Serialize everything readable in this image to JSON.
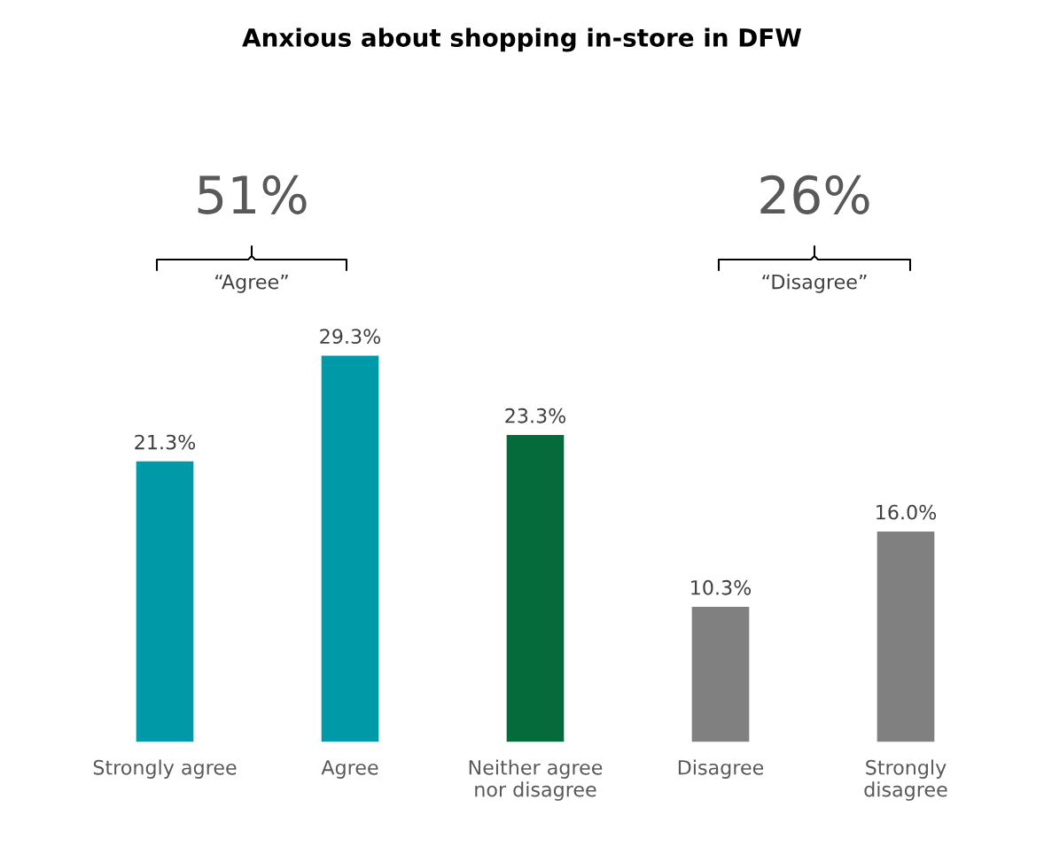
{
  "chart_data": {
    "type": "bar",
    "title": "Anxious about shopping in-store in DFW",
    "categories": [
      "Strongly agree",
      "Agree",
      "Neither agree\nnor disagree",
      "Disagree",
      "Strongly\ndisagree"
    ],
    "values": [
      21.3,
      29.3,
      23.3,
      10.3,
      16.0
    ],
    "colors": [
      "#0099a8",
      "#0099a8",
      "#056b3a",
      "#808080",
      "#808080"
    ],
    "value_labels": [
      "21.3%",
      "29.3%",
      "23.3%",
      "10.3%",
      "16.0%"
    ],
    "annotations": [
      "51%",
      "“Agree”",
      "26%",
      "“Disagree”"
    ]
  }
}
